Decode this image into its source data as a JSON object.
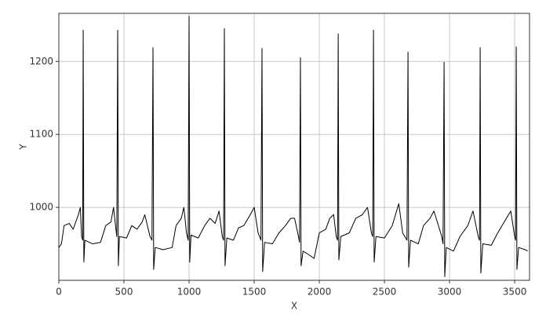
{
  "chart_data": {
    "type": "line",
    "xlabel": "X",
    "ylabel": "Y",
    "color": "#000000",
    "grid": true,
    "xlim": [
      0,
      3614
    ],
    "ylim": [
      900,
      1266
    ],
    "xticks": [
      0,
      500,
      1000,
      1500,
      2000,
      2500,
      3000,
      3500
    ],
    "yticks": [
      1000,
      1100,
      1200
    ],
    "x": [
      0,
      20,
      40,
      80,
      110,
      150,
      165,
      175,
      183,
      187,
      192,
      200,
      260,
      320,
      360,
      400,
      420,
      435,
      445,
      452,
      457,
      465,
      520,
      560,
      600,
      640,
      660,
      700,
      715,
      723,
      728,
      740,
      800,
      870,
      900,
      940,
      960,
      980,
      993,
      1000,
      1005,
      1015,
      1070,
      1120,
      1160,
      1200,
      1230,
      1255,
      1265,
      1271,
      1276,
      1290,
      1340,
      1380,
      1420,
      1470,
      1500,
      1530,
      1552,
      1560,
      1565,
      1580,
      1640,
      1690,
      1740,
      1780,
      1810,
      1840,
      1848,
      1855,
      1860,
      1875,
      1920,
      1960,
      2000,
      2050,
      2080,
      2110,
      2130,
      2140,
      2145,
      2150,
      2165,
      2230,
      2280,
      2330,
      2370,
      2400,
      2410,
      2416,
      2421,
      2435,
      2500,
      2560,
      2610,
      2640,
      2673,
      2681,
      2686,
      2700,
      2760,
      2800,
      2850,
      2880,
      2940,
      2950,
      2958,
      2963,
      2975,
      3030,
      3080,
      3140,
      3180,
      3220,
      3230,
      3235,
      3240,
      3255,
      3320,
      3370,
      3420,
      3470,
      3500,
      3507,
      3512,
      3517,
      3530,
      3580,
      3600
    ],
    "values": [
      945,
      950,
      975,
      978,
      970,
      990,
      1000,
      960,
      955,
      1243,
      925,
      955,
      950,
      952,
      975,
      980,
      1000,
      975,
      960,
      1243,
      920,
      960,
      958,
      975,
      970,
      980,
      990,
      960,
      955,
      1219,
      915,
      945,
      942,
      945,
      975,
      985,
      1000,
      965,
      955,
      1262,
      925,
      962,
      958,
      975,
      985,
      978,
      995,
      960,
      955,
      1245,
      920,
      958,
      955,
      972,
      975,
      990,
      1000,
      965,
      955,
      1218,
      912,
      952,
      950,
      965,
      975,
      985,
      985,
      960,
      952,
      1205,
      920,
      940,
      935,
      930,
      965,
      970,
      985,
      990,
      960,
      955,
      1238,
      928,
      960,
      965,
      985,
      990,
      1000,
      965,
      960,
      1243,
      925,
      960,
      958,
      975,
      1005,
      965,
      955,
      1213,
      918,
      955,
      950,
      975,
      985,
      995,
      960,
      950,
      1199,
      905,
      945,
      940,
      960,
      975,
      995,
      960,
      955,
      1219,
      910,
      950,
      948,
      965,
      980,
      995,
      960,
      955,
      1220,
      915,
      945,
      942,
      940
    ]
  }
}
